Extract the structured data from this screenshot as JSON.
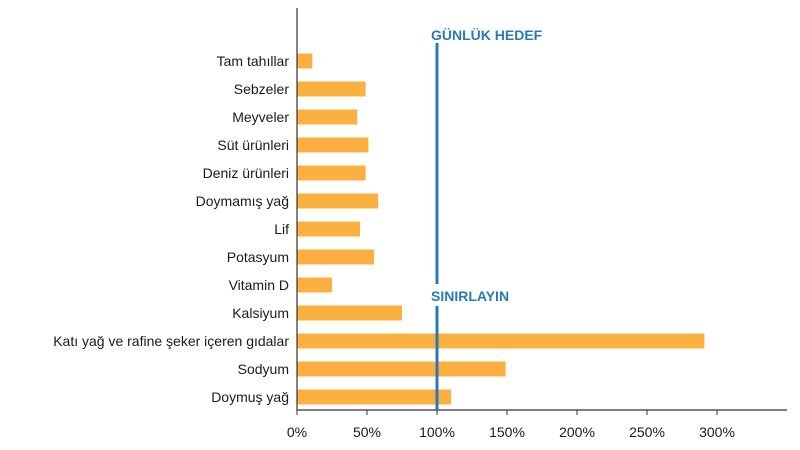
{
  "chart_data": {
    "type": "bar",
    "orientation": "horizontal",
    "categories": [
      "Tam tahıllar",
      "Sebzeler",
      "Meyveler",
      "Süt ürünleri",
      "Deniz ürünleri",
      "Doymamış yağ",
      "Lif",
      "Potasyum",
      "Vitamin D",
      "Kalsiyum",
      "Katı yağ ve rafine şeker içeren gıdalar",
      "Sodyum",
      "Doymuş yağ"
    ],
    "values": [
      11,
      49,
      43,
      51,
      49,
      58,
      45,
      55,
      25,
      75,
      291,
      149,
      110
    ],
    "xlim": [
      0,
      350
    ],
    "xticks": [
      0,
      50,
      100,
      150,
      200,
      250,
      300
    ],
    "xtick_labels": [
      "0%",
      "50%",
      "100%",
      "150%",
      "200%",
      "250%",
      "300%"
    ],
    "bar_color": "#fbb040",
    "reference_line": {
      "value": 100,
      "color": "#2a7ab8",
      "labels": [
        "GÜNLÜK HEDEF",
        "SINIRLAYIN"
      ]
    },
    "grid": false,
    "legend": "none"
  }
}
